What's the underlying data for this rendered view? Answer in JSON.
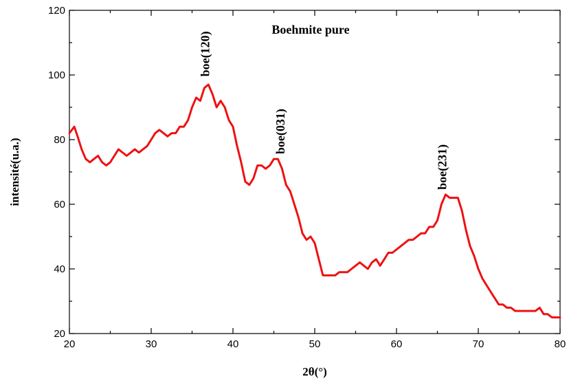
{
  "chart_data": {
    "type": "line",
    "title": "Boehmite pure",
    "xlabel": "2θ(°)",
    "ylabel": "intensité(u.a.)",
    "xlim": [
      20,
      80
    ],
    "ylim": [
      20,
      120
    ],
    "xticks": [
      20,
      30,
      40,
      50,
      60,
      70,
      80
    ],
    "yticks": [
      20,
      40,
      60,
      80,
      100,
      120
    ],
    "grid": false,
    "line_color": "#ee1111",
    "series": [
      {
        "x": [
          20,
          20.3,
          20.6,
          21,
          21.5,
          22,
          22.5,
          23,
          23.5,
          24,
          24.5,
          25,
          25.5,
          26,
          26.5,
          27,
          27.5,
          28,
          28.5,
          29,
          29.5,
          30,
          30.5,
          31,
          31.5,
          32,
          32.5,
          33,
          33.5,
          34,
          34.5,
          35,
          35.5,
          36,
          36.5,
          37,
          37.5,
          38,
          38.5,
          39,
          39.5,
          40,
          40.5,
          41,
          41.5,
          42,
          42.5,
          43,
          43.5,
          44,
          44.5,
          45,
          45.5,
          46,
          46.5,
          47,
          47.5,
          48,
          48.5,
          49,
          49.5,
          50,
          50.5,
          51,
          51.5,
          52,
          52.5,
          53,
          53.5,
          54,
          54.5,
          55,
          55.5,
          56,
          56.5,
          57,
          57.5,
          58,
          58.5,
          59,
          59.5,
          60,
          60.5,
          61,
          61.5,
          62,
          62.5,
          63,
          63.5,
          64,
          64.5,
          65,
          65.5,
          66,
          66.5,
          67,
          67.5,
          68,
          68.5,
          69,
          69.5,
          70,
          70.5,
          71,
          71.5,
          72,
          72.5,
          73,
          73.5,
          74,
          74.5,
          75,
          75.5,
          76,
          76.5,
          77,
          77.5,
          78,
          78.5,
          79,
          79.5,
          80
        ],
        "y": [
          82,
          83,
          84,
          81,
          77,
          74,
          73,
          74,
          75,
          73,
          72,
          73,
          75,
          77,
          76,
          75,
          76,
          77,
          76,
          77,
          78,
          80,
          82,
          83,
          82,
          81,
          82,
          82,
          84,
          84,
          86,
          90,
          93,
          92,
          96,
          97,
          94,
          90,
          92,
          90,
          86,
          84,
          78,
          73,
          67,
          66,
          68,
          72,
          72,
          71,
          72,
          74,
          74,
          71,
          66,
          64,
          60,
          56,
          51,
          49,
          50,
          48,
          43,
          38,
          38,
          38,
          38,
          39,
          39,
          39,
          40,
          41,
          42,
          41,
          40,
          42,
          43,
          41,
          43,
          45,
          45,
          46,
          47,
          48,
          49,
          49,
          50,
          51,
          51,
          53,
          53,
          55,
          60,
          63,
          62,
          62,
          62,
          58,
          52,
          47,
          44,
          40,
          37,
          35,
          33,
          31,
          29,
          29,
          28,
          28,
          27,
          27,
          27,
          27,
          27,
          27,
          28,
          26,
          26,
          25,
          25,
          25
        ]
      }
    ],
    "annotations": [
      {
        "text": "boe(120)",
        "x": 37.1,
        "y": 99.5
      },
      {
        "text": "boe(031)",
        "x": 46.3,
        "y": 75.5
      },
      {
        "text": "boe(231)",
        "x": 66.1,
        "y": 64.5
      }
    ]
  }
}
